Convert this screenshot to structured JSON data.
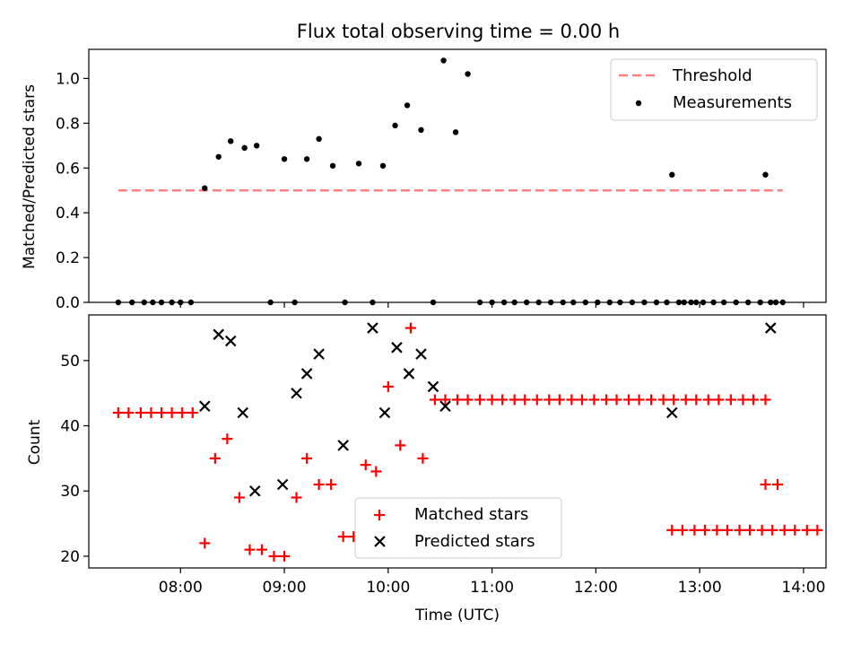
{
  "figure": {
    "title": "Flux total observing time = 0.00 h",
    "xlabel": "Time (UTC)"
  },
  "chart_data": [
    {
      "type": "scatter",
      "panel": "top",
      "ylabel": "Matched/Predicted stars",
      "xlim": [
        "07:07",
        "14:13"
      ],
      "ylim": [
        0,
        1.13
      ],
      "yticks": [
        0.0,
        0.2,
        0.4,
        0.6,
        0.8,
        1.0
      ],
      "ytick_labels": [
        "0.0",
        "0.2",
        "0.4",
        "0.6",
        "0.8",
        "1.0"
      ],
      "legend_position": "top-right",
      "grid": false,
      "threshold": {
        "name": "Threshold",
        "value": 0.5,
        "x_start": "07:24",
        "x_end": "13:48",
        "color": "#ff8080",
        "style": "dashed"
      },
      "measurements": {
        "name": "Measurements",
        "color": "#000000",
        "points": [
          [
            "07:24",
            0.0
          ],
          [
            "07:32",
            0.0
          ],
          [
            "07:39",
            0.0
          ],
          [
            "07:44",
            0.0
          ],
          [
            "07:49",
            0.0
          ],
          [
            "07:55",
            0.0
          ],
          [
            "08:00",
            0.0
          ],
          [
            "08:06",
            0.0
          ],
          [
            "08:14",
            0.51
          ],
          [
            "08:22",
            0.65
          ],
          [
            "08:29",
            0.72
          ],
          [
            "08:37",
            0.69
          ],
          [
            "08:44",
            0.7
          ],
          [
            "08:52",
            0.0
          ],
          [
            "09:00",
            0.64
          ],
          [
            "09:06",
            0.0
          ],
          [
            "09:13",
            0.64
          ],
          [
            "09:20",
            0.73
          ],
          [
            "09:28",
            0.61
          ],
          [
            "09:35",
            0.0
          ],
          [
            "09:43",
            0.62
          ],
          [
            "09:51",
            0.0
          ],
          [
            "09:57",
            0.61
          ],
          [
            "10:04",
            0.79
          ],
          [
            "10:11",
            0.88
          ],
          [
            "10:19",
            0.77
          ],
          [
            "10:26",
            0.0
          ],
          [
            "10:32",
            1.08
          ],
          [
            "10:39",
            0.76
          ],
          [
            "10:46",
            1.02
          ],
          [
            "10:53",
            0.0
          ],
          [
            "11:00",
            0.0
          ],
          [
            "11:07",
            0.0
          ],
          [
            "11:13",
            0.0
          ],
          [
            "11:20",
            0.0
          ],
          [
            "11:27",
            0.0
          ],
          [
            "11:34",
            0.0
          ],
          [
            "11:41",
            0.0
          ],
          [
            "11:47",
            0.0
          ],
          [
            "11:54",
            0.0
          ],
          [
            "12:01",
            0.0
          ],
          [
            "12:08",
            0.0
          ],
          [
            "12:14",
            0.0
          ],
          [
            "12:21",
            0.0
          ],
          [
            "12:28",
            0.0
          ],
          [
            "12:35",
            0.0
          ],
          [
            "12:41",
            0.0
          ],
          [
            "12:48",
            0.0
          ],
          [
            "12:55",
            0.0
          ],
          [
            "13:02",
            0.0
          ],
          [
            "13:08",
            0.0
          ],
          [
            "13:14",
            0.0
          ],
          [
            "13:21",
            0.0
          ],
          [
            "13:28",
            0.0
          ],
          [
            "13:35",
            0.0
          ],
          [
            "13:41",
            0.0
          ],
          [
            "13:44",
            0.0
          ],
          [
            "12:44",
            0.57
          ],
          [
            "12:51",
            0.0
          ],
          [
            "12:58",
            0.0
          ],
          [
            "13:38",
            0.57
          ],
          [
            "13:48",
            0.0
          ]
        ]
      }
    },
    {
      "type": "scatter",
      "panel": "bottom",
      "ylabel": "Count",
      "xlabel": "Time (UTC)",
      "xlim": [
        "07:07",
        "14:13"
      ],
      "ylim": [
        18.2,
        57.0
      ],
      "yticks": [
        20,
        30,
        40,
        50
      ],
      "ytick_labels": [
        "20",
        "30",
        "40",
        "50"
      ],
      "xticks": [
        "08:00",
        "09:00",
        "10:00",
        "11:00",
        "12:00",
        "13:00",
        "14:00"
      ],
      "legend_position": "lower-center",
      "grid": false,
      "series": [
        {
          "name": "Matched stars",
          "marker": "+",
          "color": "#ff0000",
          "points": [
            [
              "07:24",
              42
            ],
            [
              "07:30",
              42
            ],
            [
              "07:37",
              42
            ],
            [
              "07:43",
              42
            ],
            [
              "07:49",
              42
            ],
            [
              "07:55",
              42
            ],
            [
              "08:01",
              42
            ],
            [
              "08:07",
              42
            ],
            [
              "08:14",
              22
            ],
            [
              "08:20",
              35
            ],
            [
              "08:27",
              38
            ],
            [
              "08:34",
              29
            ],
            [
              "08:40",
              21
            ],
            [
              "08:47",
              21
            ],
            [
              "08:54",
              20
            ],
            [
              "09:00",
              20
            ],
            [
              "09:07",
              29
            ],
            [
              "09:13",
              35
            ],
            [
              "09:20",
              31
            ],
            [
              "09:27",
              31
            ],
            [
              "09:34",
              23
            ],
            [
              "09:40",
              23
            ],
            [
              "09:47",
              34
            ],
            [
              "09:53",
              33
            ],
            [
              "10:00",
              46
            ],
            [
              "10:07",
              37
            ],
            [
              "10:13",
              55
            ],
            [
              "10:20",
              35
            ],
            [
              "10:27",
              44
            ],
            [
              "10:33",
              44
            ],
            [
              "10:40",
              44
            ],
            [
              "10:46",
              44
            ],
            [
              "10:53",
              44
            ],
            [
              "11:00",
              44
            ],
            [
              "11:06",
              44
            ],
            [
              "11:13",
              44
            ],
            [
              "11:19",
              44
            ],
            [
              "11:26",
              44
            ],
            [
              "11:33",
              44
            ],
            [
              "11:39",
              44
            ],
            [
              "11:46",
              44
            ],
            [
              "11:52",
              44
            ],
            [
              "11:59",
              44
            ],
            [
              "12:06",
              44
            ],
            [
              "12:12",
              44
            ],
            [
              "12:19",
              44
            ],
            [
              "12:25",
              44
            ],
            [
              "12:32",
              44
            ],
            [
              "12:39",
              44
            ],
            [
              "12:45",
              44
            ],
            [
              "12:52",
              44
            ],
            [
              "12:58",
              44
            ],
            [
              "13:05",
              44
            ],
            [
              "13:11",
              44
            ],
            [
              "13:18",
              44
            ],
            [
              "13:25",
              44
            ],
            [
              "13:31",
              44
            ],
            [
              "13:38",
              44
            ],
            [
              "12:44",
              24
            ],
            [
              "12:50",
              24
            ],
            [
              "12:57",
              24
            ],
            [
              "13:03",
              24
            ],
            [
              "13:10",
              24
            ],
            [
              "13:16",
              24
            ],
            [
              "13:23",
              24
            ],
            [
              "13:29",
              24
            ],
            [
              "13:36",
              24
            ],
            [
              "13:42",
              24
            ],
            [
              "13:49",
              24
            ],
            [
              "13:55",
              24
            ],
            [
              "14:02",
              24
            ],
            [
              "14:08",
              24
            ],
            [
              "13:38",
              31
            ],
            [
              "13:45",
              31
            ]
          ]
        },
        {
          "name": "Predicted stars",
          "marker": "x",
          "color": "#000000",
          "points": [
            [
              "08:14",
              43
            ],
            [
              "08:22",
              54
            ],
            [
              "08:29",
              53
            ],
            [
              "08:36",
              42
            ],
            [
              "08:43",
              30
            ],
            [
              "08:59",
              31
            ],
            [
              "09:07",
              45
            ],
            [
              "09:13",
              48
            ],
            [
              "09:20",
              51
            ],
            [
              "09:34",
              37
            ],
            [
              "09:51",
              55
            ],
            [
              "09:58",
              42
            ],
            [
              "10:05",
              52
            ],
            [
              "10:12",
              48
            ],
            [
              "10:19",
              51
            ],
            [
              "10:26",
              46
            ],
            [
              "10:33",
              43
            ],
            [
              "12:44",
              42
            ],
            [
              "13:41",
              55
            ]
          ]
        }
      ]
    }
  ]
}
